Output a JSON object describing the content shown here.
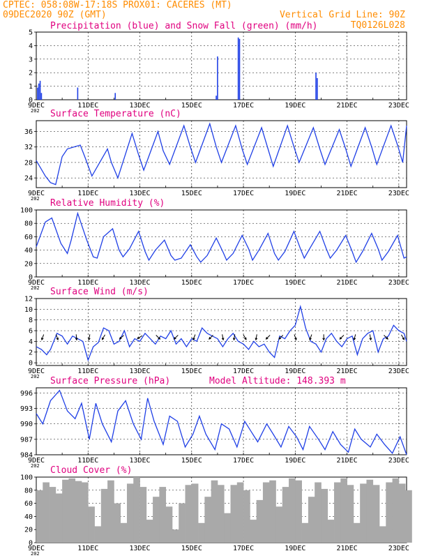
{
  "header": {
    "line1": "CPTEC:   058:08W-17:18S   PROX01: CACERES (MT)",
    "line2_left": "09DEC2020 90Z (GMT)",
    "line2_right": "Vertical Grid Line: 90Z",
    "code": "TQ0126L028"
  },
  "x_axis": {
    "tick_labels": [
      "9DEC",
      "11DEC",
      "13DEC",
      "15DEC",
      "17DEC",
      "19DEC",
      "21DEC",
      "23DEC"
    ],
    "tick_days": [
      0,
      2,
      4,
      6,
      8,
      10,
      12,
      14
    ],
    "sublabel": "202",
    "range_days": [
      0,
      14.3
    ]
  },
  "colors": {
    "header": "#ff8c00",
    "title": "#e0007f",
    "series": "#1f3fe6",
    "snow": "#00aa00",
    "cloud": "#a9a9a9",
    "wind_arrow": "#000000"
  },
  "chart_data": [
    {
      "type": "bar",
      "title": "Precipitation (blue) and Snow Fall (green) (mm/h)",
      "ylim": [
        0,
        5
      ],
      "yticks": [
        "0",
        "1",
        "2",
        "3",
        "4",
        "5"
      ],
      "ytick_values": [
        0,
        1,
        2,
        3,
        4,
        5
      ],
      "series": [
        {
          "name": "Precipitation",
          "x": [
            0.05,
            0.1,
            0.15,
            0.2,
            1.6,
            3.05,
            6.95,
            7.0,
            7.8,
            7.85,
            10.8,
            10.85
          ],
          "values": [
            0.9,
            1.2,
            1.4,
            0.5,
            0.9,
            0.5,
            0.3,
            3.2,
            4.6,
            4.5,
            2.0,
            1.6
          ]
        },
        {
          "name": "Snow Fall",
          "x": [],
          "values": []
        }
      ]
    },
    {
      "type": "line",
      "title": "Surface Temperature (nC)",
      "ylim": [
        21.5,
        38.8
      ],
      "yticks": [
        "24",
        "28",
        "32",
        "36"
      ],
      "ytick_values": [
        24,
        28,
        32,
        36
      ],
      "series": [
        {
          "name": "Temperature",
          "x": [
            0,
            0.35,
            0.55,
            0.75,
            1.0,
            1.2,
            1.7,
            1.9,
            2.15,
            2.75,
            2.9,
            3.15,
            3.7,
            3.95,
            4.15,
            4.7,
            4.9,
            5.15,
            5.7,
            5.95,
            6.15,
            6.7,
            6.95,
            7.15,
            7.7,
            7.95,
            8.15,
            8.7,
            8.95,
            9.15,
            9.7,
            9.95,
            10.15,
            10.7,
            10.95,
            11.15,
            11.7,
            11.95,
            12.15,
            12.7,
            12.95,
            13.15,
            13.7,
            13.95,
            14.15,
            14.3
          ],
          "values": [
            28.5,
            24.5,
            22.8,
            22.3,
            29.5,
            31.5,
            32.5,
            29.0,
            24.5,
            31.5,
            28.0,
            24.0,
            35.5,
            30.0,
            26.0,
            36.0,
            31.0,
            27.5,
            37.5,
            32.0,
            28.0,
            38.0,
            32.0,
            28.0,
            37.5,
            31.5,
            27.5,
            37.0,
            31.5,
            27.0,
            37.5,
            32.0,
            28.0,
            37.0,
            31.5,
            27.5,
            36.5,
            31.5,
            27.0,
            37.0,
            32.0,
            27.5,
            37.5,
            32.5,
            28.0,
            37.5
          ]
        }
      ]
    },
    {
      "type": "line",
      "title": "Relative Humidity (%)",
      "ylim": [
        0,
        100
      ],
      "yticks": [
        "0",
        "20",
        "40",
        "60",
        "80",
        "100"
      ],
      "ytick_values": [
        0,
        20,
        40,
        60,
        80,
        100
      ],
      "series": [
        {
          "name": "Relative Humidity",
          "x": [
            0,
            0.35,
            0.6,
            0.95,
            1.2,
            1.35,
            1.6,
            1.95,
            2.2,
            2.35,
            2.6,
            2.95,
            3.2,
            3.35,
            3.6,
            3.95,
            4.2,
            4.35,
            4.6,
            4.95,
            5.2,
            5.35,
            5.6,
            5.95,
            6.2,
            6.35,
            6.6,
            6.95,
            7.2,
            7.35,
            7.6,
            7.95,
            8.2,
            8.35,
            8.6,
            8.95,
            9.2,
            9.35,
            9.6,
            9.95,
            10.2,
            10.35,
            10.6,
            10.95,
            11.2,
            11.35,
            11.6,
            11.95,
            12.2,
            12.35,
            12.6,
            12.95,
            13.2,
            13.35,
            13.6,
            13.95,
            14.2,
            14.3
          ],
          "values": [
            45,
            82,
            88,
            50,
            35,
            55,
            95,
            55,
            30,
            28,
            60,
            72,
            40,
            30,
            42,
            68,
            38,
            25,
            40,
            55,
            32,
            25,
            28,
            48,
            30,
            22,
            32,
            58,
            38,
            25,
            35,
            62,
            42,
            25,
            40,
            65,
            35,
            25,
            38,
            68,
            42,
            28,
            45,
            68,
            42,
            28,
            40,
            62,
            38,
            22,
            38,
            65,
            42,
            25,
            38,
            62,
            28,
            30
          ]
        }
      ]
    },
    {
      "type": "line",
      "title": "Surface Wind (m/s)",
      "ylim": [
        -0.5,
        12
      ],
      "yticks": [
        "0",
        "2",
        "4",
        "6",
        "8",
        "10",
        "12"
      ],
      "ytick_values": [
        0,
        2,
        4,
        6,
        8,
        10,
        12
      ],
      "series": [
        {
          "name": "Wind Speed",
          "x": [
            0,
            0.2,
            0.4,
            0.55,
            0.8,
            1.0,
            1.2,
            1.4,
            1.6,
            1.8,
            2.0,
            2.2,
            2.4,
            2.6,
            2.8,
            3.0,
            3.2,
            3.4,
            3.6,
            3.8,
            4.0,
            4.2,
            4.4,
            4.6,
            4.8,
            5.0,
            5.2,
            5.4,
            5.6,
            5.8,
            6.0,
            6.2,
            6.4,
            6.6,
            6.8,
            7.0,
            7.2,
            7.4,
            7.6,
            7.8,
            8.0,
            8.2,
            8.4,
            8.6,
            8.8,
            9.0,
            9.2,
            9.4,
            9.6,
            9.8,
            10.0,
            10.2,
            10.4,
            10.6,
            10.8,
            11.0,
            11.2,
            11.4,
            11.6,
            11.8,
            12.0,
            12.2,
            12.4,
            12.6,
            12.8,
            13.0,
            13.2,
            13.4,
            13.6,
            13.8,
            14.0,
            14.2,
            14.3
          ],
          "values": [
            3,
            2.5,
            1.5,
            2.5,
            5.5,
            5,
            3.5,
            5,
            4.5,
            4,
            0.5,
            3,
            3.8,
            6.5,
            6,
            3.5,
            4,
            6,
            3,
            4.5,
            4,
            5.5,
            4.5,
            3.5,
            5,
            4.5,
            6,
            3.5,
            4.5,
            3,
            4.5,
            4,
            6.5,
            5.5,
            5,
            4.5,
            3,
            4.5,
            5.5,
            4,
            3.5,
            2.5,
            4,
            3,
            3.5,
            2,
            1,
            5,
            4.5,
            6,
            7,
            10.5,
            6.5,
            4,
            3.5,
            2,
            4.5,
            5.5,
            4,
            3,
            4.5,
            5,
            1.5,
            4.5,
            5.5,
            6,
            2,
            4.5,
            5,
            7,
            6,
            5.5,
            4
          ]
        },
        {
          "name": "Wind Arrows",
          "x": [
            0.25,
            0.8,
            1.55,
            2.05,
            2.6,
            3.3,
            4.0,
            4.7,
            5.4,
            6.1,
            6.75,
            7.2,
            7.65,
            8.05,
            8.5,
            8.95,
            9.45,
            10.0,
            10.6,
            11.1,
            11.8,
            12.3,
            12.9,
            13.5,
            14.15
          ],
          "dir_deg": [
            200,
            160,
            175,
            190,
            210,
            230,
            240,
            135,
            225,
            200,
            225,
            170,
            190,
            150,
            190,
            225,
            225,
            160,
            200,
            180,
            225,
            195,
            170,
            135,
            150
          ]
        }
      ]
    },
    {
      "type": "line",
      "title": "Surface Pressure (hPa)",
      "annotation": "Model Altitude: 148.393  m",
      "ylim": [
        984,
        997
      ],
      "yticks": [
        "984",
        "987",
        "990",
        "993",
        "996"
      ],
      "ytick_values": [
        984,
        987,
        990,
        993,
        996
      ],
      "series": [
        {
          "name": "Surface Pressure",
          "x": [
            0,
            0.25,
            0.55,
            0.9,
            1.2,
            1.5,
            1.75,
            2.05,
            2.3,
            2.55,
            2.9,
            3.15,
            3.45,
            3.75,
            4.05,
            4.3,
            4.55,
            4.9,
            5.15,
            5.45,
            5.75,
            6.05,
            6.3,
            6.55,
            6.9,
            7.15,
            7.45,
            7.75,
            8.05,
            8.3,
            8.55,
            8.9,
            9.15,
            9.45,
            9.75,
            10.05,
            10.3,
            10.55,
            10.9,
            11.15,
            11.45,
            11.75,
            12.05,
            12.3,
            12.55,
            12.9,
            13.15,
            13.45,
            13.75,
            14.05,
            14.3
          ],
          "values": [
            992,
            990,
            994.5,
            996.5,
            992.5,
            991,
            994,
            987,
            994,
            990,
            986.5,
            992.5,
            994.5,
            990,
            987,
            995,
            990.5,
            986,
            991.5,
            990.5,
            985.5,
            988,
            991.5,
            988,
            985,
            990,
            989,
            985.5,
            990.5,
            988.5,
            986.5,
            990,
            988,
            985.5,
            989.5,
            987.5,
            985,
            989.5,
            987,
            985,
            988.5,
            986,
            984.5,
            989,
            987,
            985.5,
            988,
            986,
            984.3,
            987.5,
            984
          ]
        }
      ]
    },
    {
      "type": "bar",
      "title": "Cloud Cover (%)",
      "ylim": [
        0,
        100
      ],
      "yticks": [
        "0",
        "20",
        "40",
        "60",
        "80",
        "100"
      ],
      "ytick_values": [
        0,
        20,
        40,
        60,
        80,
        100
      ],
      "series": [
        {
          "name": "Cloud Cover",
          "x": [
            0,
            0.25,
            0.5,
            0.75,
            1.0,
            1.25,
            1.5,
            1.75,
            2.0,
            2.25,
            2.5,
            2.75,
            3.0,
            3.25,
            3.5,
            3.75,
            4.0,
            4.25,
            4.5,
            4.75,
            5.0,
            5.25,
            5.5,
            5.75,
            6.0,
            6.25,
            6.5,
            6.75,
            7.0,
            7.25,
            7.5,
            7.75,
            8.0,
            8.25,
            8.5,
            8.75,
            9.0,
            9.25,
            9.5,
            9.75,
            10.0,
            10.25,
            10.5,
            10.75,
            11.0,
            11.25,
            11.5,
            11.75,
            12.0,
            12.25,
            12.5,
            12.75,
            13.0,
            13.25,
            13.5,
            13.75,
            14.0,
            14.25
          ],
          "values": [
            80,
            92,
            85,
            75,
            96,
            98,
            94,
            92,
            55,
            25,
            82,
            95,
            60,
            30,
            90,
            100,
            85,
            35,
            70,
            85,
            55,
            20,
            60,
            88,
            90,
            30,
            70,
            95,
            88,
            45,
            88,
            92,
            80,
            35,
            65,
            92,
            95,
            55,
            85,
            98,
            95,
            30,
            70,
            92,
            82,
            35,
            92,
            98,
            88,
            30,
            90,
            96,
            88,
            25,
            92,
            98,
            90,
            80
          ]
        }
      ]
    }
  ]
}
